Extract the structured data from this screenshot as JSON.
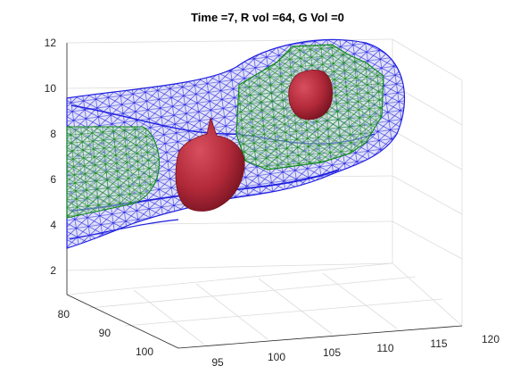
{
  "chart_data": {
    "type": "3d-mesh-surface",
    "title": "Time =7, R vol =64, G Vol =0",
    "xlabel": "",
    "ylabel": "",
    "zlabel": "",
    "x_ticks": [
      "95",
      "100",
      "105",
      "110",
      "115",
      "120"
    ],
    "y_ticks": [
      "80",
      "90",
      "100"
    ],
    "z_ticks": [
      "2",
      "4",
      "6",
      "8",
      "10",
      "12"
    ],
    "xlim": [
      92,
      120
    ],
    "ylim": [
      76,
      102
    ],
    "zlim": [
      1,
      12
    ],
    "grid": true,
    "series": [],
    "colors": {
      "outer_mesh": "#1f1fe0",
      "outer_fill": "#c8c8f4",
      "inner_mesh": "#118a1c",
      "inner_fill": "#c8ecc2",
      "blob": "#b22a3a",
      "blob_highlight": "#d8505f"
    }
  }
}
